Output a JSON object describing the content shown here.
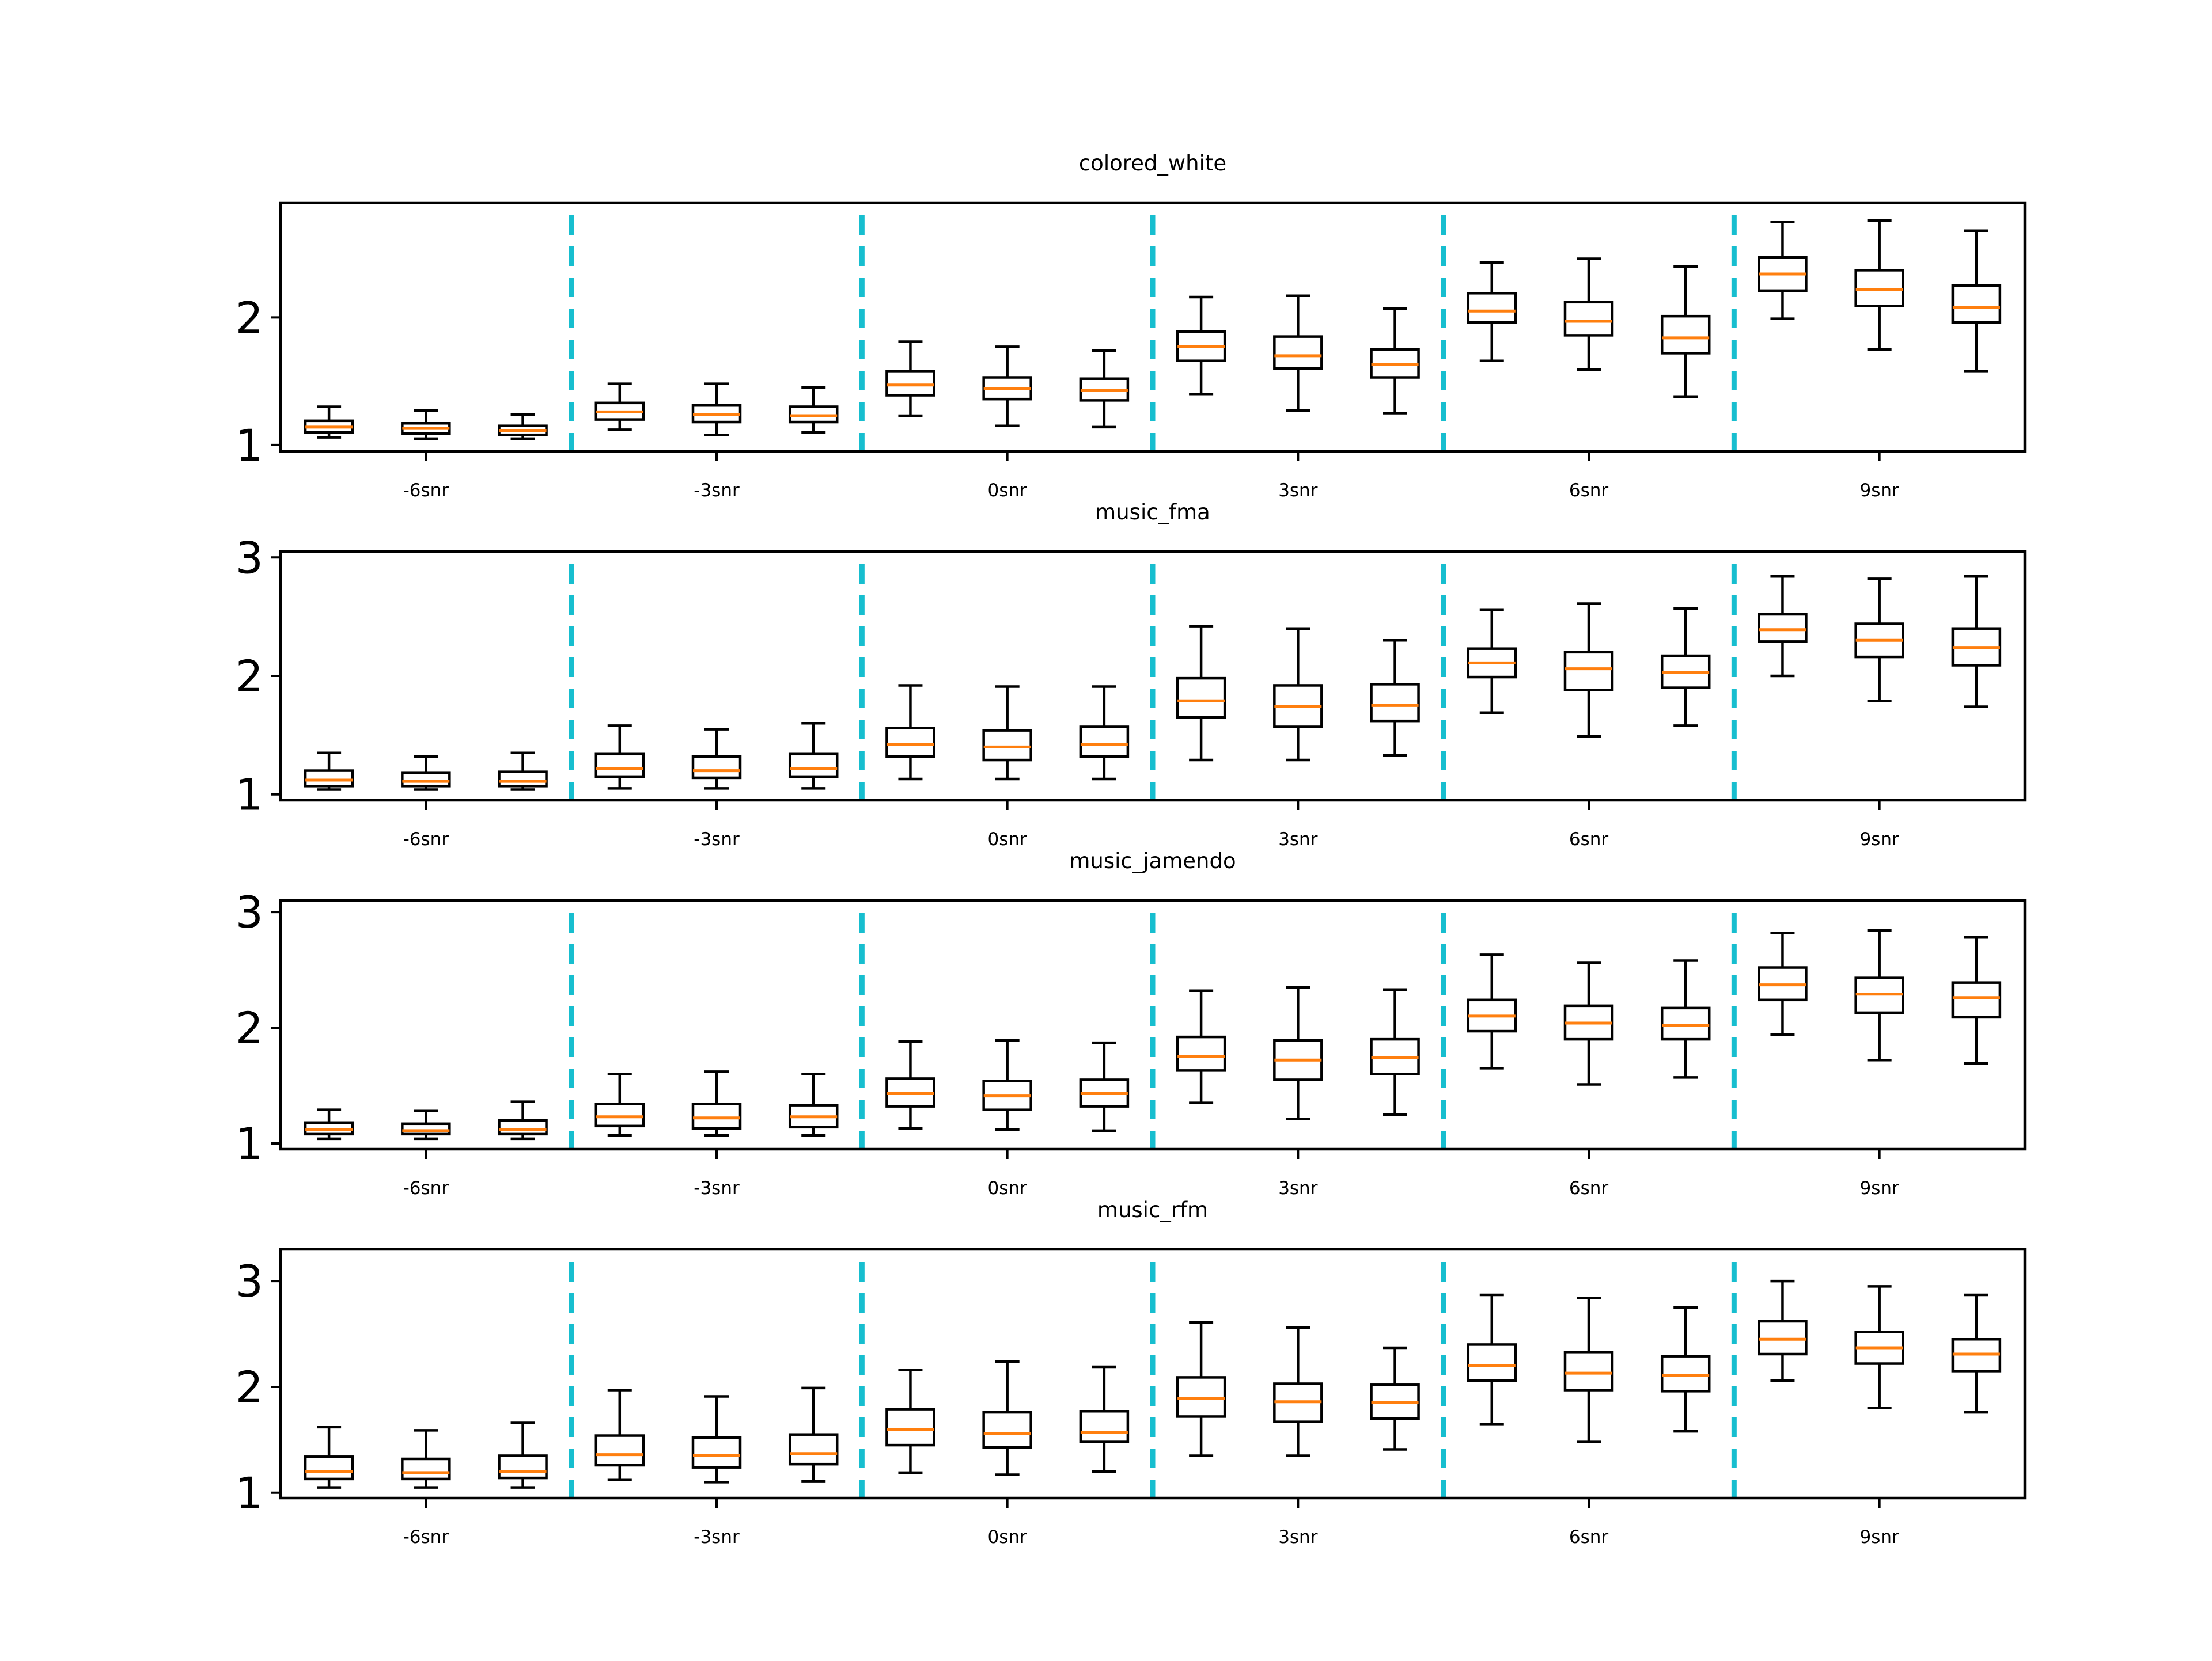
{
  "colors": {
    "box": "#000000",
    "median": "#ff7f0e",
    "separator": "#17becf"
  },
  "chart_data": [
    {
      "type": "box",
      "title": "colored_white",
      "categories": [
        "-6snr",
        "-3snr",
        "0snr",
        "3snr",
        "6snr",
        "9snr"
      ],
      "ylim": [
        0.95,
        2.9
      ],
      "yticks": [
        1,
        2
      ],
      "boxes": [
        {
          "min": 1.06,
          "q1": 1.1,
          "median": 1.14,
          "q3": 1.19,
          "max": 1.3
        },
        {
          "min": 1.05,
          "q1": 1.09,
          "median": 1.13,
          "q3": 1.17,
          "max": 1.27
        },
        {
          "min": 1.05,
          "q1": 1.08,
          "median": 1.11,
          "q3": 1.15,
          "max": 1.24
        },
        {
          "min": 1.12,
          "q1": 1.2,
          "median": 1.26,
          "q3": 1.33,
          "max": 1.48
        },
        {
          "min": 1.08,
          "q1": 1.18,
          "median": 1.24,
          "q3": 1.31,
          "max": 1.48
        },
        {
          "min": 1.1,
          "q1": 1.18,
          "median": 1.23,
          "q3": 1.3,
          "max": 1.45
        },
        {
          "min": 1.23,
          "q1": 1.39,
          "median": 1.47,
          "q3": 1.58,
          "max": 1.81
        },
        {
          "min": 1.15,
          "q1": 1.36,
          "median": 1.44,
          "q3": 1.53,
          "max": 1.77
        },
        {
          "min": 1.14,
          "q1": 1.35,
          "median": 1.43,
          "q3": 1.52,
          "max": 1.74
        },
        {
          "min": 1.4,
          "q1": 1.66,
          "median": 1.77,
          "q3": 1.89,
          "max": 2.16
        },
        {
          "min": 1.27,
          "q1": 1.6,
          "median": 1.7,
          "q3": 1.85,
          "max": 2.17
        },
        {
          "min": 1.25,
          "q1": 1.53,
          "median": 1.63,
          "q3": 1.75,
          "max": 2.07
        },
        {
          "min": 1.66,
          "q1": 1.96,
          "median": 2.05,
          "q3": 2.19,
          "max": 2.43
        },
        {
          "min": 1.59,
          "q1": 1.86,
          "median": 1.97,
          "q3": 2.12,
          "max": 2.46
        },
        {
          "min": 1.38,
          "q1": 1.72,
          "median": 1.84,
          "q3": 2.01,
          "max": 2.4
        },
        {
          "min": 1.99,
          "q1": 2.21,
          "median": 2.34,
          "q3": 2.47,
          "max": 2.75
        },
        {
          "min": 1.75,
          "q1": 2.09,
          "median": 2.22,
          "q3": 2.37,
          "max": 2.76
        },
        {
          "min": 1.58,
          "q1": 1.96,
          "median": 2.08,
          "q3": 2.25,
          "max": 2.68
        }
      ]
    },
    {
      "type": "box",
      "title": "music_fma",
      "categories": [
        "-6snr",
        "-3snr",
        "0snr",
        "3snr",
        "6snr",
        "9snr"
      ],
      "ylim": [
        0.95,
        3.05
      ],
      "yticks": [
        1,
        2,
        3
      ],
      "boxes": [
        {
          "min": 1.04,
          "q1": 1.07,
          "median": 1.12,
          "q3": 1.2,
          "max": 1.35
        },
        {
          "min": 1.04,
          "q1": 1.07,
          "median": 1.11,
          "q3": 1.18,
          "max": 1.32
        },
        {
          "min": 1.04,
          "q1": 1.07,
          "median": 1.11,
          "q3": 1.19,
          "max": 1.35
        },
        {
          "min": 1.05,
          "q1": 1.15,
          "median": 1.22,
          "q3": 1.34,
          "max": 1.58
        },
        {
          "min": 1.05,
          "q1": 1.14,
          "median": 1.2,
          "q3": 1.32,
          "max": 1.55
        },
        {
          "min": 1.05,
          "q1": 1.15,
          "median": 1.22,
          "q3": 1.34,
          "max": 1.6
        },
        {
          "min": 1.13,
          "q1": 1.32,
          "median": 1.42,
          "q3": 1.56,
          "max": 1.92
        },
        {
          "min": 1.13,
          "q1": 1.29,
          "median": 1.4,
          "q3": 1.54,
          "max": 1.91
        },
        {
          "min": 1.13,
          "q1": 1.32,
          "median": 1.42,
          "q3": 1.57,
          "max": 1.91
        },
        {
          "min": 1.29,
          "q1": 1.65,
          "median": 1.79,
          "q3": 1.98,
          "max": 2.42
        },
        {
          "min": 1.29,
          "q1": 1.57,
          "median": 1.74,
          "q3": 1.92,
          "max": 2.4
        },
        {
          "min": 1.33,
          "q1": 1.62,
          "median": 1.75,
          "q3": 1.93,
          "max": 2.3
        },
        {
          "min": 1.69,
          "q1": 1.99,
          "median": 2.11,
          "q3": 2.23,
          "max": 2.56
        },
        {
          "min": 1.49,
          "q1": 1.88,
          "median": 2.06,
          "q3": 2.2,
          "max": 2.61
        },
        {
          "min": 1.58,
          "q1": 1.9,
          "median": 2.03,
          "q3": 2.17,
          "max": 2.57
        },
        {
          "min": 2.0,
          "q1": 2.29,
          "median": 2.39,
          "q3": 2.52,
          "max": 2.84
        },
        {
          "min": 1.79,
          "q1": 2.16,
          "median": 2.3,
          "q3": 2.44,
          "max": 2.82
        },
        {
          "min": 1.74,
          "q1": 2.09,
          "median": 2.24,
          "q3": 2.4,
          "max": 2.84
        }
      ]
    },
    {
      "type": "box",
      "title": "music_jamendo",
      "categories": [
        "-6snr",
        "-3snr",
        "0snr",
        "3snr",
        "6snr",
        "9snr"
      ],
      "ylim": [
        0.95,
        3.1
      ],
      "yticks": [
        1,
        2,
        3
      ],
      "boxes": [
        {
          "min": 1.04,
          "q1": 1.08,
          "median": 1.12,
          "q3": 1.18,
          "max": 1.29
        },
        {
          "min": 1.04,
          "q1": 1.08,
          "median": 1.11,
          "q3": 1.17,
          "max": 1.28
        },
        {
          "min": 1.04,
          "q1": 1.08,
          "median": 1.12,
          "q3": 1.2,
          "max": 1.36
        },
        {
          "min": 1.07,
          "q1": 1.15,
          "median": 1.23,
          "q3": 1.34,
          "max": 1.6
        },
        {
          "min": 1.07,
          "q1": 1.13,
          "median": 1.22,
          "q3": 1.34,
          "max": 1.62
        },
        {
          "min": 1.07,
          "q1": 1.14,
          "median": 1.23,
          "q3": 1.33,
          "max": 1.6
        },
        {
          "min": 1.13,
          "q1": 1.32,
          "median": 1.43,
          "q3": 1.56,
          "max": 1.88
        },
        {
          "min": 1.12,
          "q1": 1.29,
          "median": 1.41,
          "q3": 1.54,
          "max": 1.89
        },
        {
          "min": 1.11,
          "q1": 1.32,
          "median": 1.43,
          "q3": 1.55,
          "max": 1.87
        },
        {
          "min": 1.35,
          "q1": 1.63,
          "median": 1.75,
          "q3": 1.92,
          "max": 2.32
        },
        {
          "min": 1.21,
          "q1": 1.55,
          "median": 1.72,
          "q3": 1.89,
          "max": 2.35
        },
        {
          "min": 1.25,
          "q1": 1.6,
          "median": 1.74,
          "q3": 1.9,
          "max": 2.33
        },
        {
          "min": 1.65,
          "q1": 1.97,
          "median": 2.1,
          "q3": 2.24,
          "max": 2.63
        },
        {
          "min": 1.51,
          "q1": 1.9,
          "median": 2.04,
          "q3": 2.19,
          "max": 2.56
        },
        {
          "min": 1.57,
          "q1": 1.9,
          "median": 2.02,
          "q3": 2.17,
          "max": 2.58
        },
        {
          "min": 1.94,
          "q1": 2.24,
          "median": 2.37,
          "q3": 2.52,
          "max": 2.82
        },
        {
          "min": 1.72,
          "q1": 2.13,
          "median": 2.29,
          "q3": 2.43,
          "max": 2.84
        },
        {
          "min": 1.69,
          "q1": 2.09,
          "median": 2.26,
          "q3": 2.39,
          "max": 2.78
        }
      ]
    },
    {
      "type": "box",
      "title": "music_rfm",
      "categories": [
        "-6snr",
        "-3snr",
        "0snr",
        "3snr",
        "6snr",
        "9snr"
      ],
      "ylim": [
        0.95,
        3.3
      ],
      "yticks": [
        1,
        2,
        3
      ],
      "boxes": [
        {
          "min": 1.05,
          "q1": 1.13,
          "median": 1.2,
          "q3": 1.34,
          "max": 1.62
        },
        {
          "min": 1.05,
          "q1": 1.13,
          "median": 1.19,
          "q3": 1.32,
          "max": 1.59
        },
        {
          "min": 1.05,
          "q1": 1.14,
          "median": 1.2,
          "q3": 1.35,
          "max": 1.66
        },
        {
          "min": 1.12,
          "q1": 1.26,
          "median": 1.36,
          "q3": 1.54,
          "max": 1.97
        },
        {
          "min": 1.1,
          "q1": 1.24,
          "median": 1.35,
          "q3": 1.52,
          "max": 1.91
        },
        {
          "min": 1.11,
          "q1": 1.27,
          "median": 1.37,
          "q3": 1.55,
          "max": 1.99
        },
        {
          "min": 1.19,
          "q1": 1.45,
          "median": 1.6,
          "q3": 1.79,
          "max": 2.16
        },
        {
          "min": 1.17,
          "q1": 1.43,
          "median": 1.56,
          "q3": 1.76,
          "max": 2.24
        },
        {
          "min": 1.2,
          "q1": 1.48,
          "median": 1.57,
          "q3": 1.77,
          "max": 2.19
        },
        {
          "min": 1.35,
          "q1": 1.72,
          "median": 1.89,
          "q3": 2.09,
          "max": 2.61
        },
        {
          "min": 1.35,
          "q1": 1.67,
          "median": 1.86,
          "q3": 2.03,
          "max": 2.56
        },
        {
          "min": 1.41,
          "q1": 1.7,
          "median": 1.85,
          "q3": 2.02,
          "max": 2.37
        },
        {
          "min": 1.65,
          "q1": 2.06,
          "median": 2.2,
          "q3": 2.4,
          "max": 2.87
        },
        {
          "min": 1.48,
          "q1": 1.97,
          "median": 2.13,
          "q3": 2.33,
          "max": 2.84
        },
        {
          "min": 1.58,
          "q1": 1.96,
          "median": 2.11,
          "q3": 2.29,
          "max": 2.75
        },
        {
          "min": 2.06,
          "q1": 2.31,
          "median": 2.45,
          "q3": 2.62,
          "max": 3.0
        },
        {
          "min": 1.8,
          "q1": 2.22,
          "median": 2.37,
          "q3": 2.52,
          "max": 2.95
        },
        {
          "min": 1.76,
          "q1": 2.15,
          "median": 2.31,
          "q3": 2.45,
          "max": 2.87
        }
      ]
    }
  ]
}
